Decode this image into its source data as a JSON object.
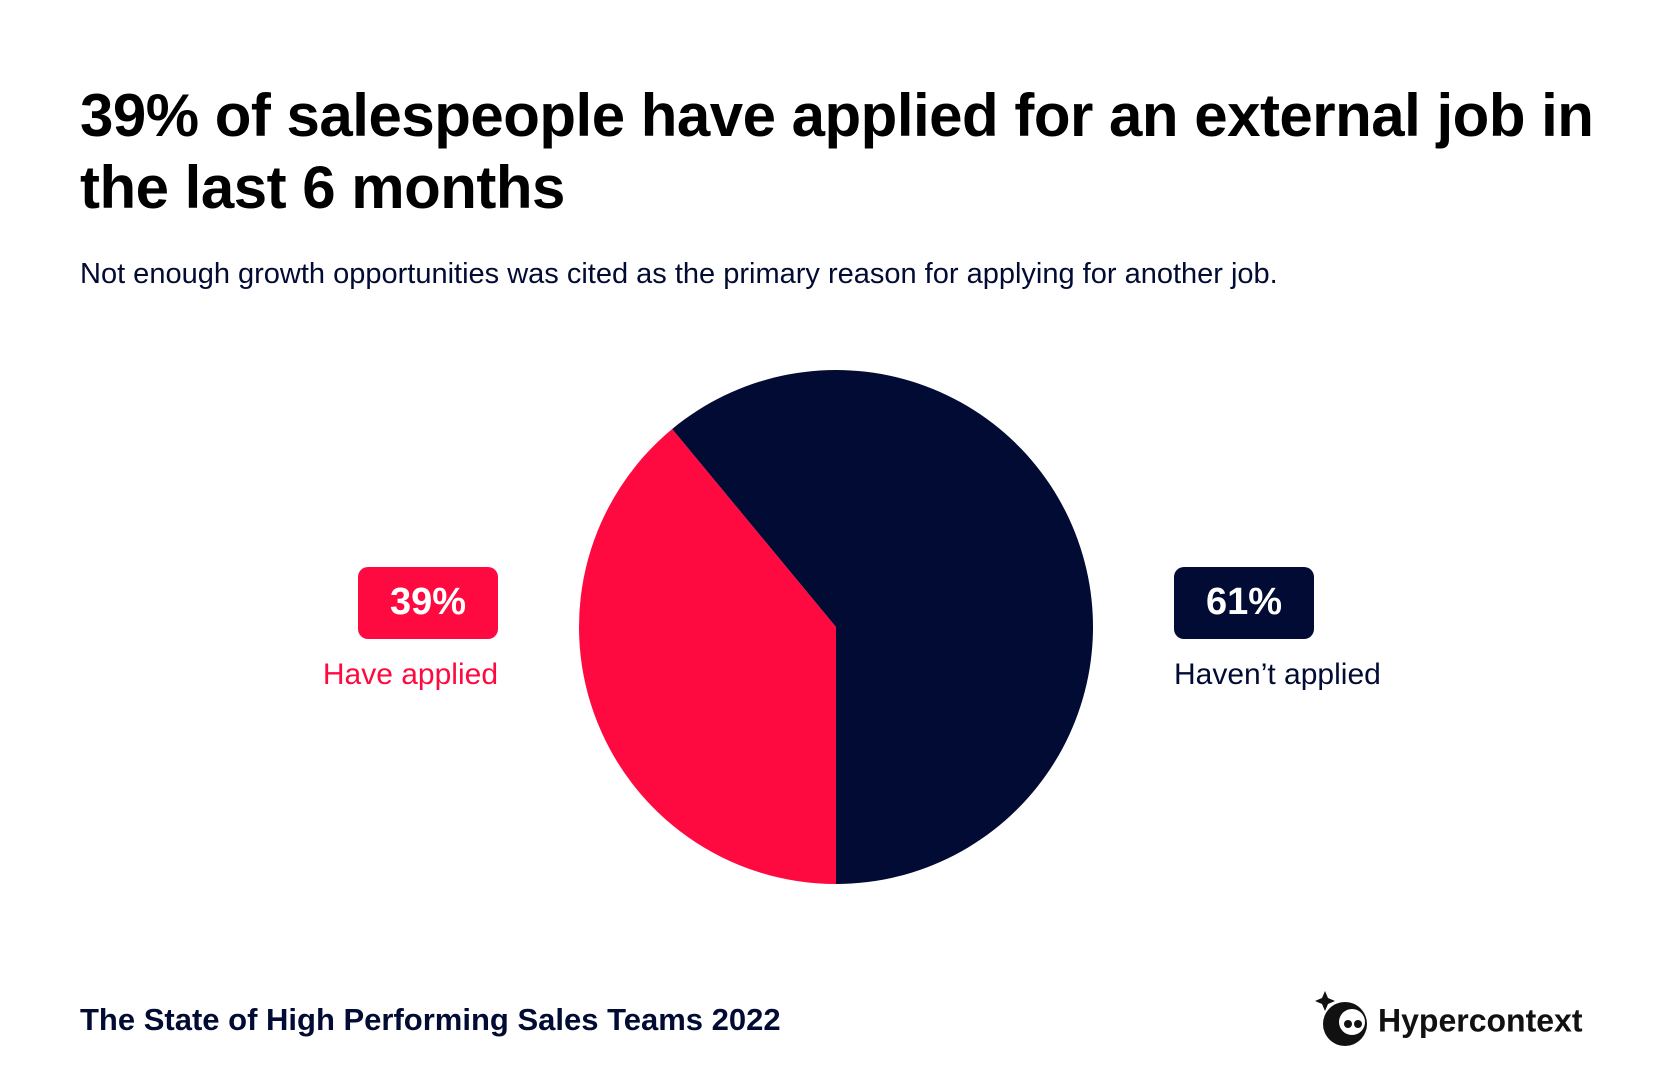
{
  "chart_data": {
    "type": "pie",
    "title": "39% of salespeople have applied for an external job in the last 6 months",
    "subtitle": "Not enough growth opportunities was cited as the primary reason for applying for another job.",
    "categories": [
      "Have applied",
      "Haven’t applied"
    ],
    "values": [
      39,
      61
    ],
    "value_labels": [
      "39%",
      "61%"
    ],
    "colors": [
      "#ff0a40",
      "#020b33"
    ]
  },
  "footer": {
    "source": "The State of High Performing Sales Teams 2022",
    "brand": "Hypercontext"
  }
}
